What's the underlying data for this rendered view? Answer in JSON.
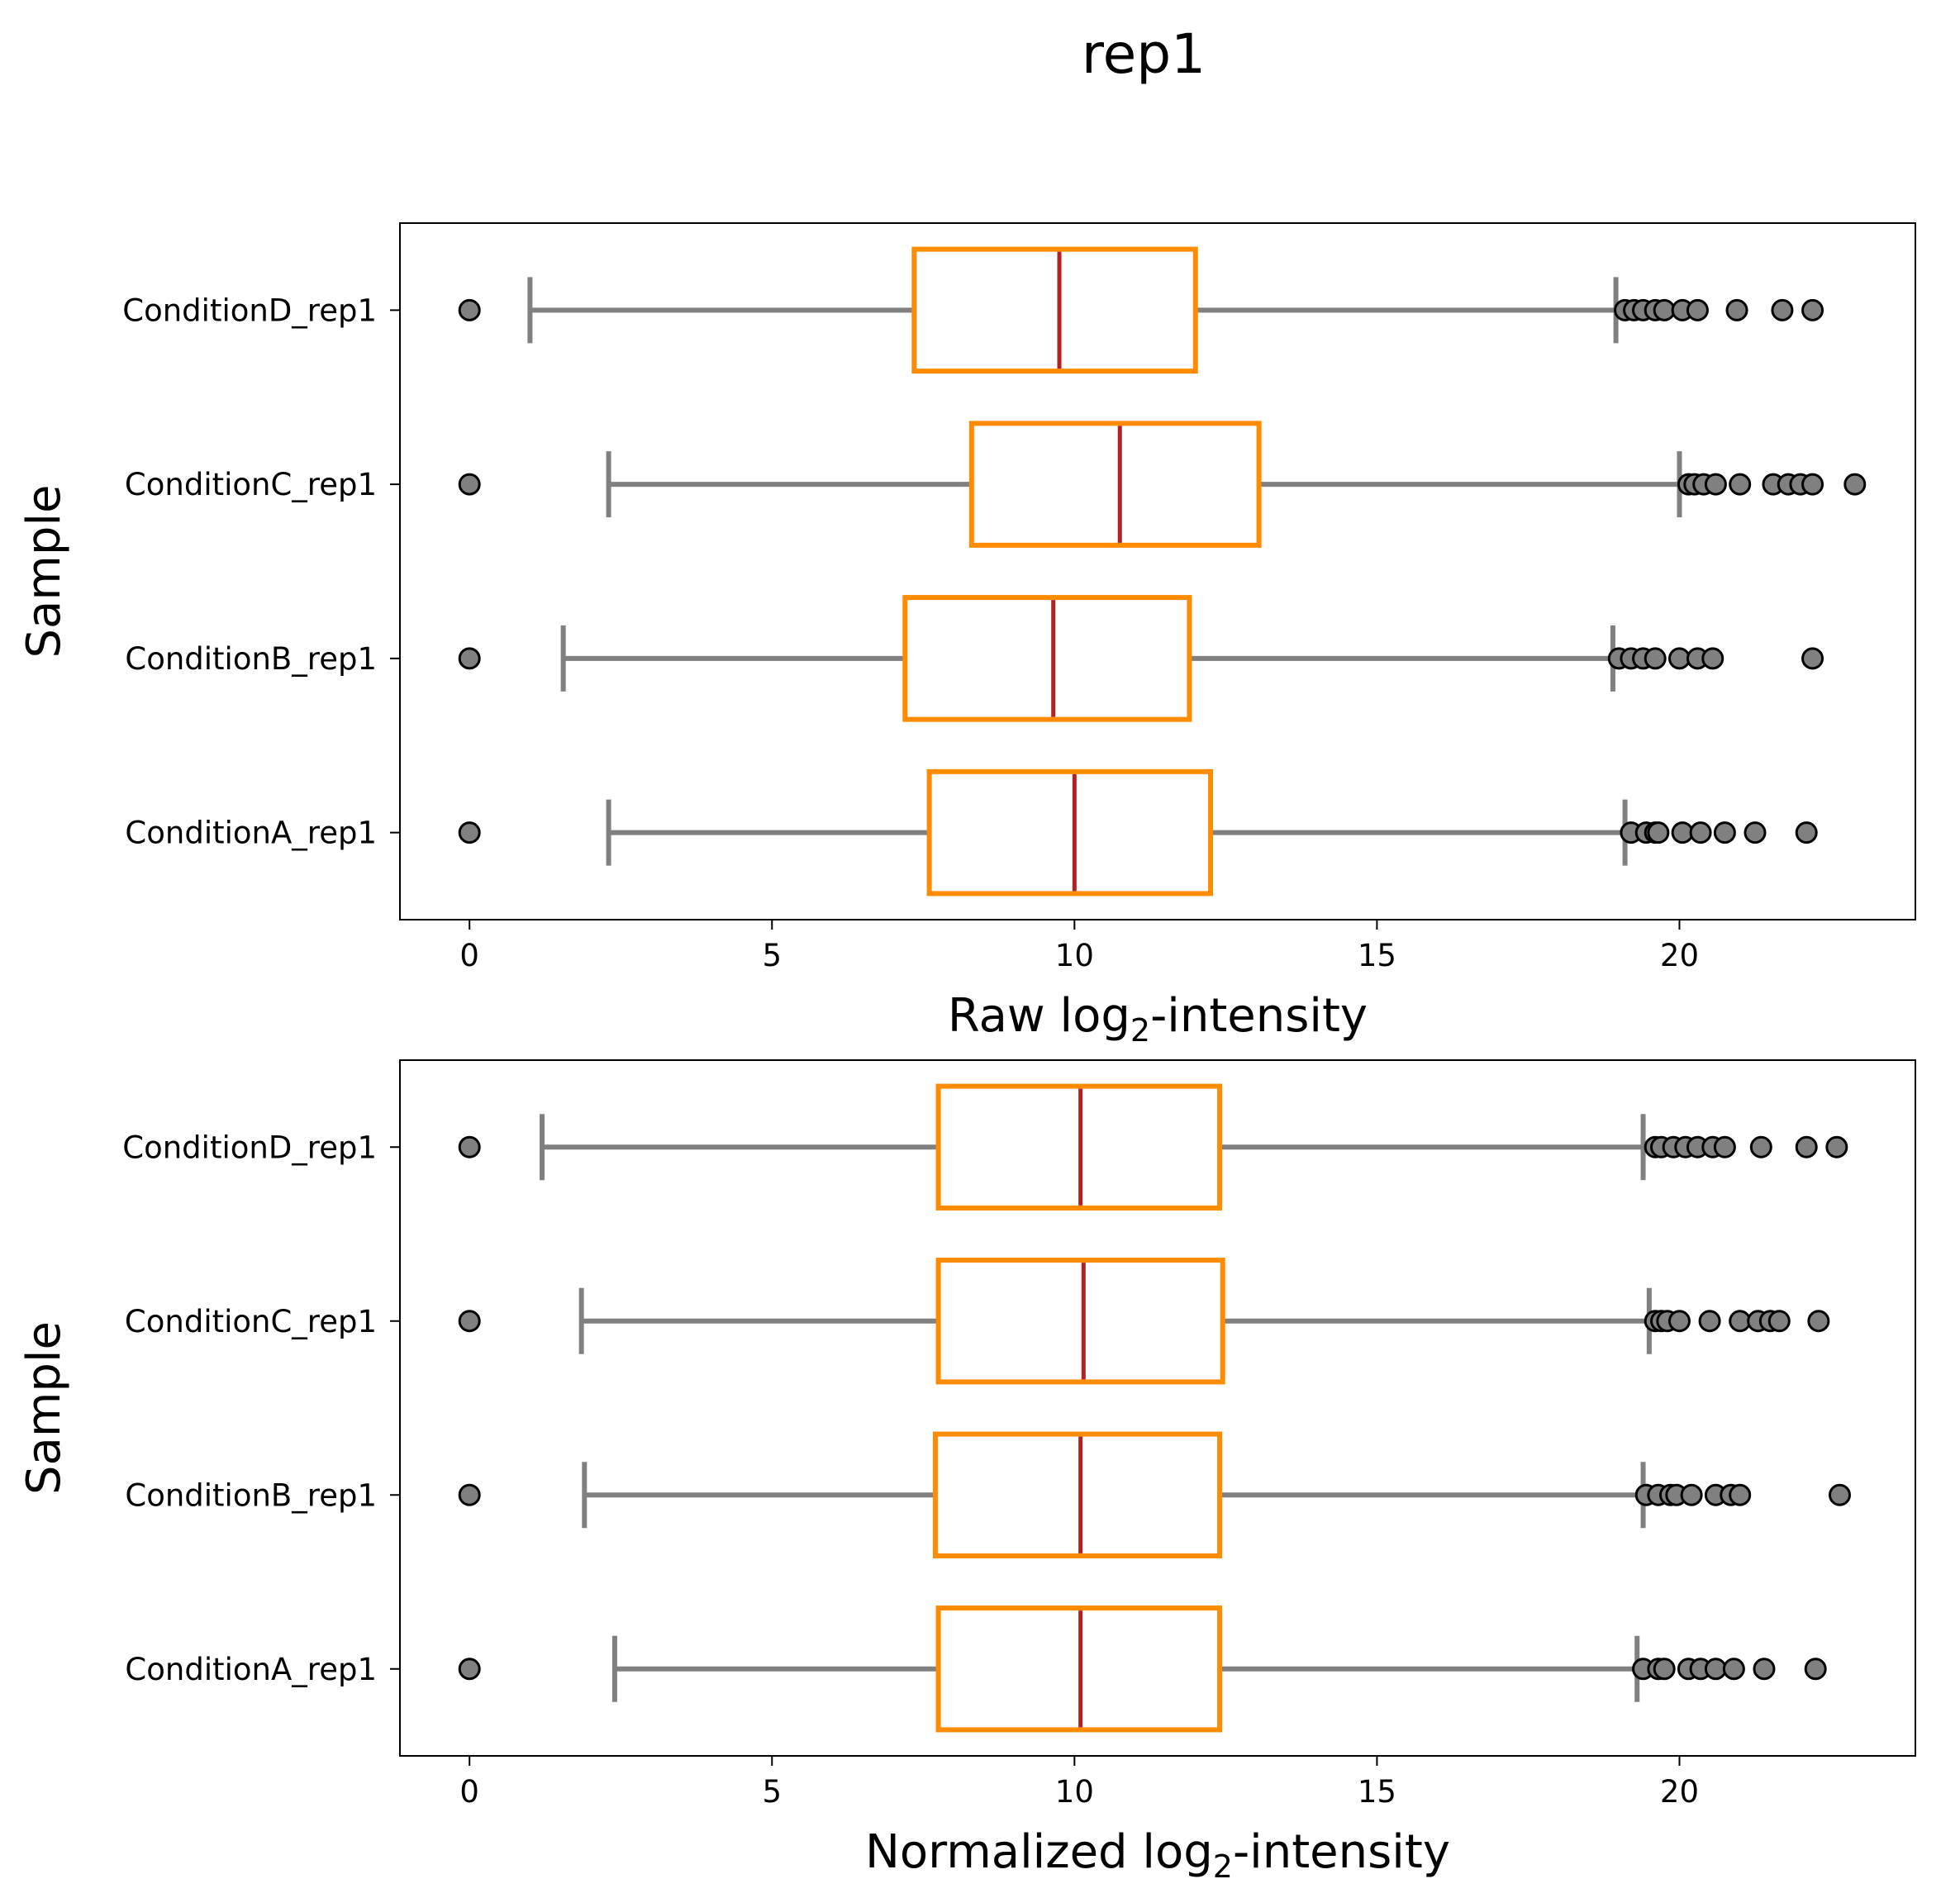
{
  "suptitle": "rep1",
  "chart_data": [
    {
      "type": "boxplot",
      "orientation": "horizontal",
      "xlabel_pre": "Raw log",
      "xlabel_sub": "2",
      "xlabel_post": "-intensity",
      "ylabel": "Sample",
      "xlim": [
        -1.15,
        23.9
      ],
      "xticks": [
        0,
        5,
        10,
        15,
        20
      ],
      "grid": false,
      "categories": [
        "ConditionD_rep1",
        "ConditionC_rep1",
        "ConditionB_rep1",
        "ConditionA_rep1"
      ],
      "boxes": [
        {
          "label": "ConditionD_rep1",
          "whislo": 1.0,
          "q1": 7.35,
          "med": 9.75,
          "q3": 12.0,
          "whishi": 18.95,
          "fliers": [
            0,
            19.1,
            19.25,
            19.4,
            19.6,
            19.75,
            20.05,
            20.3,
            20.95,
            21.7,
            22.2
          ]
        },
        {
          "label": "ConditionC_rep1",
          "whislo": 2.3,
          "q1": 8.3,
          "med": 10.75,
          "q3": 13.05,
          "whishi": 20.0,
          "fliers": [
            0,
            20.15,
            20.25,
            20.4,
            20.6,
            21.0,
            21.55,
            21.8,
            22.0,
            22.2,
            22.9
          ]
        },
        {
          "label": "ConditionB_rep1",
          "whislo": 1.55,
          "q1": 7.2,
          "med": 9.65,
          "q3": 11.9,
          "whishi": 18.9,
          "fliers": [
            0,
            19.0,
            19.2,
            19.4,
            19.6,
            20.0,
            20.3,
            20.55,
            22.2
          ]
        },
        {
          "label": "ConditionA_rep1",
          "whislo": 2.3,
          "q1": 7.6,
          "med": 10.0,
          "q3": 12.25,
          "whishi": 19.1,
          "fliers": [
            0,
            19.2,
            19.45,
            19.6,
            19.65,
            20.05,
            20.35,
            20.75,
            21.25,
            22.1
          ]
        }
      ]
    },
    {
      "type": "boxplot",
      "orientation": "horizontal",
      "xlabel_pre": "Normalized log",
      "xlabel_sub": "2",
      "xlabel_post": "-intensity",
      "ylabel": "Sample",
      "xlim": [
        -1.15,
        23.9
      ],
      "xticks": [
        0,
        5,
        10,
        15,
        20
      ],
      "grid": false,
      "categories": [
        "ConditionD_rep1",
        "ConditionC_rep1",
        "ConditionB_rep1",
        "ConditionA_rep1"
      ],
      "boxes": [
        {
          "label": "ConditionD_rep1",
          "whislo": 1.2,
          "q1": 7.75,
          "med": 10.1,
          "q3": 12.4,
          "whishi": 19.4,
          "fliers": [
            0,
            19.6,
            19.7,
            19.9,
            20.1,
            20.3,
            20.55,
            20.75,
            21.35,
            22.1,
            22.6
          ]
        },
        {
          "label": "ConditionC_rep1",
          "whislo": 1.85,
          "q1": 7.75,
          "med": 10.15,
          "q3": 12.45,
          "whishi": 19.5,
          "fliers": [
            0,
            19.6,
            19.7,
            19.8,
            20.0,
            20.5,
            21.0,
            21.3,
            21.5,
            21.65,
            22.3
          ]
        },
        {
          "label": "ConditionB_rep1",
          "whislo": 1.9,
          "q1": 7.7,
          "med": 10.1,
          "q3": 12.4,
          "whishi": 19.4,
          "fliers": [
            0,
            19.45,
            19.65,
            19.85,
            19.95,
            20.2,
            20.6,
            20.85,
            21.0,
            22.65
          ]
        },
        {
          "label": "ConditionA_rep1",
          "whislo": 2.4,
          "q1": 7.75,
          "med": 10.1,
          "q3": 12.4,
          "whishi": 19.3,
          "fliers": [
            0,
            19.4,
            19.65,
            19.75,
            20.15,
            20.35,
            20.6,
            20.9,
            21.4,
            22.25
          ]
        }
      ]
    }
  ],
  "colors": {
    "box_edge": "#ff8c00",
    "median": "#b22222",
    "whisker": "#808080",
    "flier_fill": "#808080",
    "flier_edge": "#000000",
    "axes": "#000000"
  }
}
